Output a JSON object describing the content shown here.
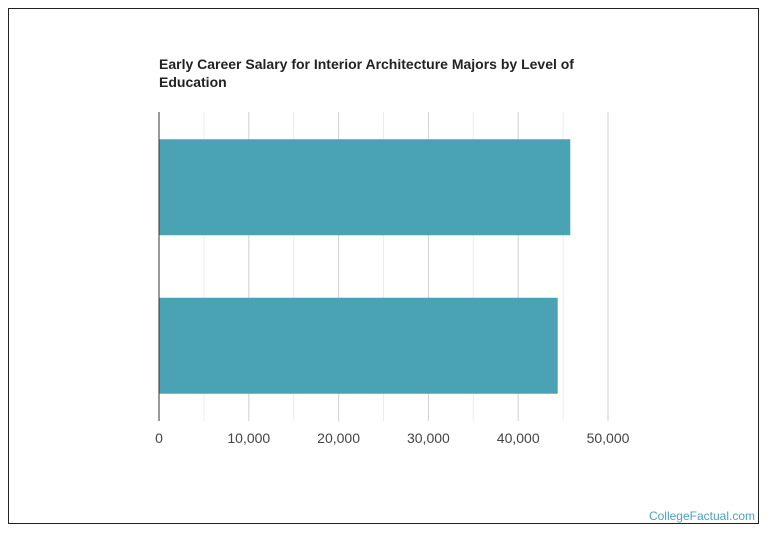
{
  "chart_data": {
    "type": "bar",
    "orientation": "horizontal",
    "title": "Early Career Salary for Interior Architecture Majors by Level of Education",
    "xlabel": "",
    "ylabel": "",
    "categories": [
      "",
      ""
    ],
    "values": [
      45800,
      44400
    ],
    "xlim": [
      0,
      50000
    ],
    "xticks": [
      0,
      10000,
      20000,
      30000,
      40000,
      50000
    ],
    "xtick_labels": [
      "0",
      "10,000",
      "20,000",
      "30,000",
      "40,000",
      "50,000"
    ],
    "grid": true,
    "legend": "none",
    "bar_color": "#4aa3b5",
    "grid_color": "#d9d9d9",
    "axis_color": "#333333"
  },
  "watermark": "CollegeFactual.com"
}
